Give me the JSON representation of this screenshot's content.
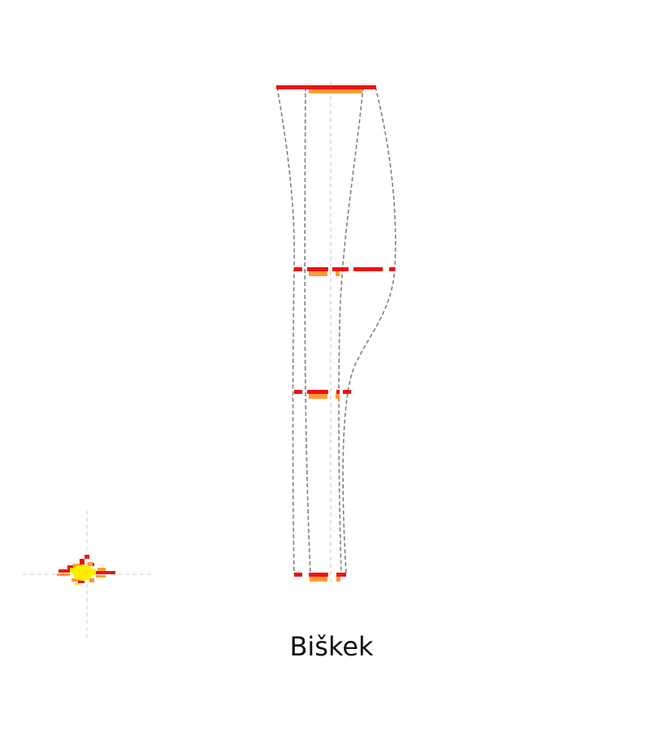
{
  "city_name": "Biškek",
  "colors": {
    "outline": "#808080",
    "centerline": "#d0d0d0",
    "red_band": "#ee1111",
    "orange_band": "#ff9933",
    "marker_yellow": "#ffee00",
    "marker_red": "#ee1111",
    "marker_orange": "#ff9933",
    "crosshair": "#d8d8d8"
  }
}
